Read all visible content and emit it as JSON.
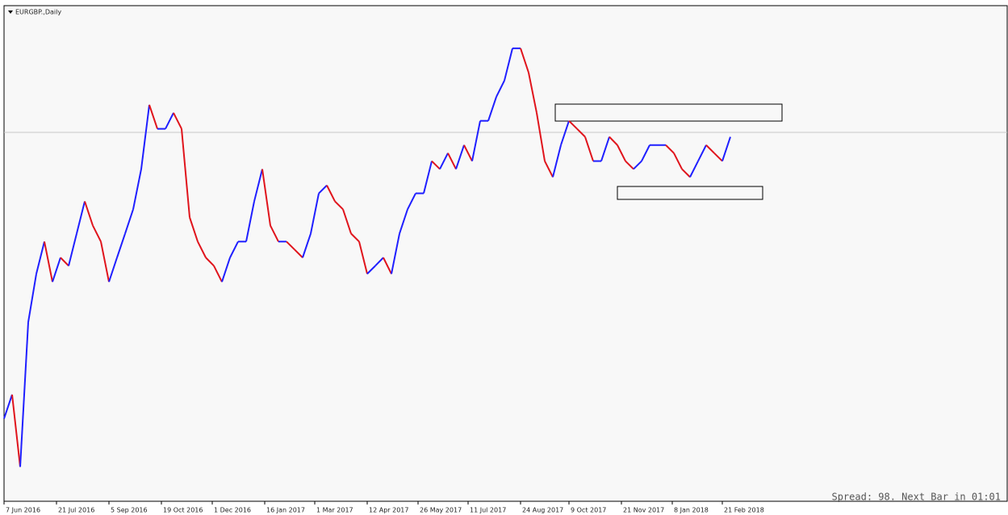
{
  "chart_data": {
    "type": "line",
    "title": "EURGBP.,Daily",
    "status": "Spread: 98. Next Bar in 01:01",
    "up_color": "#1f1fff",
    "down_color": "#e0141c",
    "values": [
      0.7857,
      0.7947,
      0.7676,
      0.8219,
      0.84,
      0.8521,
      0.837,
      0.8461,
      0.843,
      0.8551,
      0.8672,
      0.8581,
      0.8521,
      0.837,
      0.8461,
      0.8551,
      0.8642,
      0.8793,
      0.9034,
      0.8944,
      0.8944,
      0.9004,
      0.8944,
      0.8612,
      0.8521,
      0.8461,
      0.843,
      0.837,
      0.8461,
      0.8521,
      0.8521,
      0.8672,
      0.8793,
      0.8581,
      0.8521,
      0.8521,
      0.8491,
      0.8461,
      0.8551,
      0.8702,
      0.8732,
      0.8672,
      0.8642,
      0.8551,
      0.8521,
      0.84,
      0.843,
      0.8461,
      0.84,
      0.8551,
      0.8642,
      0.8702,
      0.8702,
      0.8823,
      0.8793,
      0.8853,
      0.8793,
      0.8883,
      0.8823,
      0.8974,
      0.8974,
      0.9064,
      0.9125,
      0.9246,
      0.9246,
      0.9155,
      0.9004,
      0.8823,
      0.8763,
      0.8883,
      0.8974,
      0.8944,
      0.8914,
      0.8823,
      0.8823,
      0.8914,
      0.8883,
      0.8823,
      0.8793,
      0.8823,
      0.8883,
      0.8883,
      0.8883,
      0.8853,
      0.8793,
      0.8763,
      0.8823,
      0.8883,
      0.8853,
      0.8823,
      0.8914
    ],
    "xlim": [
      0,
      124.4
    ],
    "ylim": [
      0.755,
      0.9403
    ],
    "xticks": [
      {
        "value": 0,
        "label": "7 Jun 2016"
      },
      {
        "value": 6.5,
        "label": "21 Jul 2016"
      },
      {
        "value": 13,
        "label": "5 Sep 2016"
      },
      {
        "value": 19.5,
        "label": "19 Oct 2016"
      },
      {
        "value": 25.8,
        "label": "1 Dec 2016"
      },
      {
        "value": 32.3,
        "label": "16 Jan 2017"
      },
      {
        "value": 38.5,
        "label": "1 Mar 2017"
      },
      {
        "value": 45,
        "label": "12 Apr 2017"
      },
      {
        "value": 51.3,
        "label": "26 May 2017"
      },
      {
        "value": 57.5,
        "label": "11 Jul 2017"
      },
      {
        "value": 64,
        "label": "24 Aug 2017"
      },
      {
        "value": 70,
        "label": "9 Oct 2017"
      },
      {
        "value": 76.5,
        "label": "21 Nov 2017"
      },
      {
        "value": 82.8,
        "label": "8 Jan 2018"
      },
      {
        "value": 89,
        "label": "21 Feb 2018"
      }
    ]
  }
}
